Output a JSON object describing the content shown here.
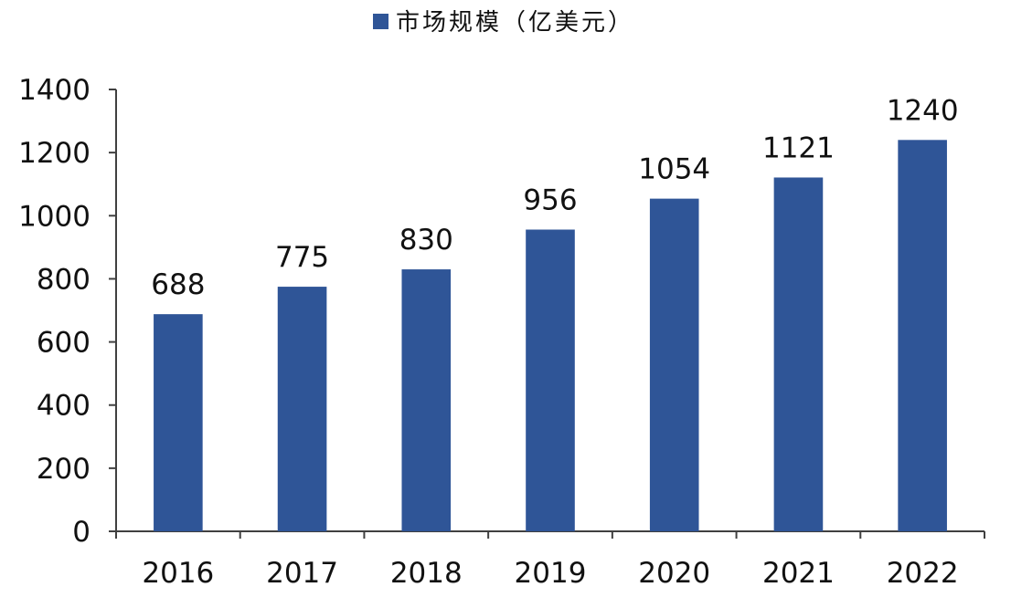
{
  "chart_data": {
    "type": "bar",
    "categories": [
      "2016",
      "2017",
      "2018",
      "2019",
      "2020",
      "2021",
      "2022"
    ],
    "series": [
      {
        "name": "市场规模（亿美元）",
        "values": [
          688,
          775,
          830,
          956,
          1054,
          1121,
          1240
        ],
        "color": "#2f5597"
      }
    ],
    "data_labels": [
      "688",
      "775",
      "830",
      "956",
      "1054",
      "1121",
      "1240"
    ],
    "ylim": [
      0,
      1400
    ],
    "yticks": [
      0,
      200,
      400,
      600,
      800,
      1000,
      1200,
      1400
    ],
    "ytick_labels": [
      "0",
      "200",
      "400",
      "600",
      "800",
      "1000",
      "1200",
      "1400"
    ],
    "grid": false,
    "legend": {
      "position": "top-center",
      "label": "市场规模（亿美元）"
    },
    "axis_color": "#404040",
    "text_color": "#111111"
  }
}
